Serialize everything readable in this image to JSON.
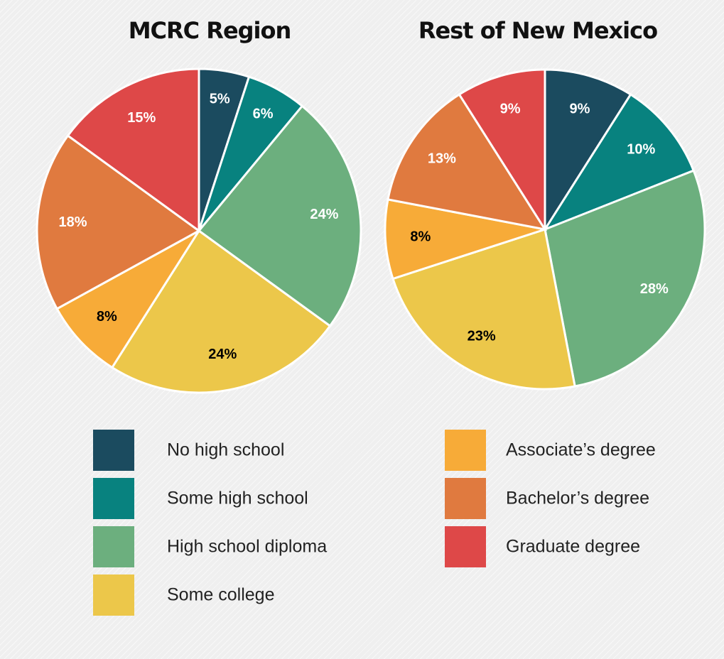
{
  "chart_data": [
    {
      "type": "pie",
      "title": "MCRC Region",
      "values": [
        5,
        6,
        24,
        24,
        8,
        18,
        15
      ],
      "value_labels": [
        "5%",
        "6%",
        "24%",
        "24%",
        "8%",
        "18%",
        "15%"
      ]
    },
    {
      "type": "pie",
      "title": "Rest of New Mexico",
      "values": [
        9,
        10,
        28,
        23,
        8,
        13,
        9
      ],
      "value_labels": [
        "9%",
        "10%",
        "28%",
        "23%",
        "8%",
        "13%",
        "9%"
      ]
    }
  ],
  "legend": {
    "categories": [
      "No high school",
      "Some high school",
      "High school diploma",
      "Some college",
      "Associate’s degree",
      "Bachelor’s degree",
      "Graduate degree"
    ],
    "colors": [
      "#1b4b5f",
      "#08827f",
      "#6caf7e",
      "#ecc74a",
      "#f7ab38",
      "#e07a3f",
      "#de4848"
    ]
  }
}
